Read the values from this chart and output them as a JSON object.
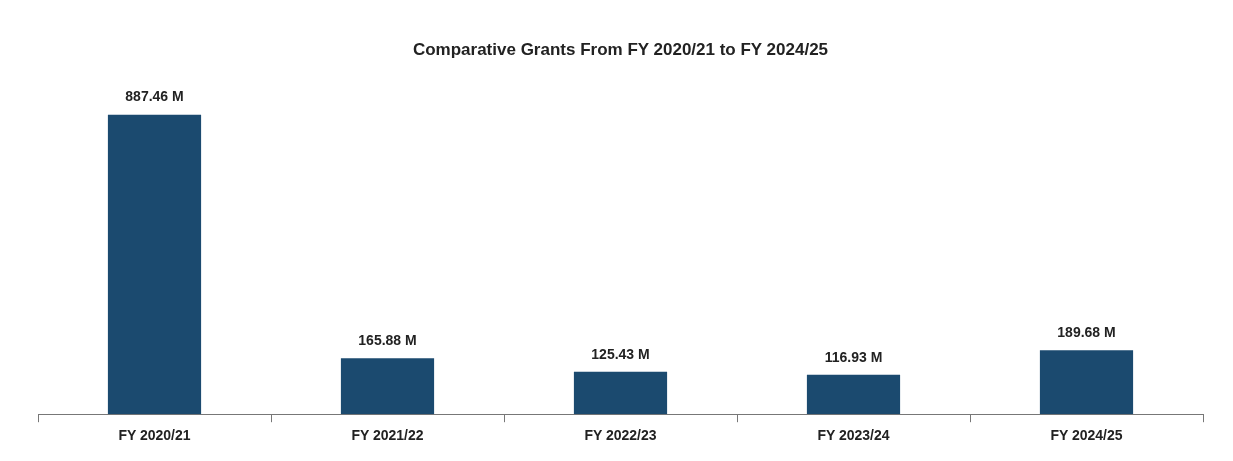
{
  "chart_data": {
    "type": "bar",
    "title": "Comparative Grants From FY 2020/21 to FY 2024/25",
    "categories": [
      "FY 2020/21",
      "FY 2021/22",
      "FY 2022/23",
      "FY 2023/24",
      "FY 2024/25"
    ],
    "values": [
      887.46,
      165.88,
      125.43,
      116.93,
      189.68
    ],
    "value_labels": [
      "887.46 M",
      "165.88 M",
      "125.43 M",
      "116.93 M",
      "189.68 M"
    ],
    "color": "#1b4a6f"
  }
}
